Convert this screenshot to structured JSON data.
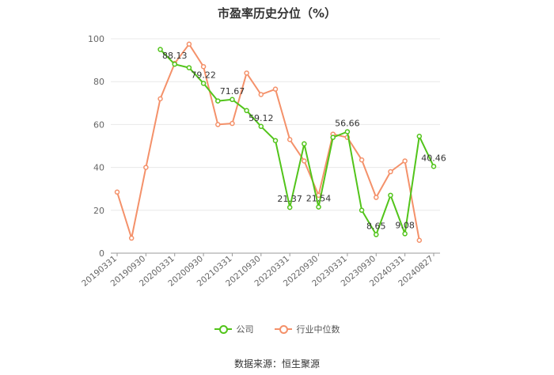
{
  "chart_data": {
    "type": "line",
    "title": "市盈率历史分位（%）",
    "ylim": [
      0,
      100
    ],
    "yticks": [
      0,
      20,
      40,
      60,
      80,
      100
    ],
    "grid": true,
    "legend_position": "bottom",
    "x_tick_labels": [
      "20190331",
      "20190930",
      "20200331",
      "20200930",
      "20210331",
      "20210930",
      "20220331",
      "20220930",
      "20230331",
      "20230930",
      "20240331",
      "20240827"
    ],
    "x": [
      "20190331",
      "20190630",
      "20190930",
      "20191231",
      "20200331",
      "20200630",
      "20200930",
      "20201231",
      "20210331",
      "20210630",
      "20210930",
      "20211231",
      "20220331",
      "20220630",
      "20220930",
      "20221231",
      "20230331",
      "20230630",
      "20230930",
      "20231231",
      "20240331",
      "20240630",
      "20240827"
    ],
    "series": [
      {
        "name": "公司",
        "color": "#52c41a",
        "values": [
          null,
          null,
          null,
          95,
          88.13,
          86.5,
          79.22,
          71,
          71.67,
          66.5,
          59.12,
          52.5,
          21.37,
          51,
          21.54,
          54,
          56.66,
          20,
          8.65,
          27,
          9.08,
          54.5,
          40.46
        ]
      },
      {
        "name": "行业中位数",
        "color": "#f4916a",
        "values": [
          28.5,
          7,
          40,
          72,
          88.5,
          97.5,
          87,
          60,
          60.5,
          84,
          74,
          76.5,
          53,
          43,
          27,
          55.5,
          54,
          43.5,
          26,
          38,
          43,
          6,
          null
        ]
      }
    ],
    "data_labels": [
      {
        "series": 0,
        "index": 4,
        "text": "88.13"
      },
      {
        "series": 0,
        "index": 6,
        "text": "79.22"
      },
      {
        "series": 0,
        "index": 8,
        "text": "71.67"
      },
      {
        "series": 0,
        "index": 10,
        "text": "59.12"
      },
      {
        "series": 0,
        "index": 12,
        "text": "21.37"
      },
      {
        "series": 0,
        "index": 14,
        "text": "21.54"
      },
      {
        "series": 0,
        "index": 16,
        "text": "56.66"
      },
      {
        "series": 0,
        "index": 18,
        "text": "8.65"
      },
      {
        "series": 0,
        "index": 20,
        "text": "9.08"
      },
      {
        "series": 0,
        "index": 22,
        "text": "40.46"
      }
    ]
  },
  "legend": {
    "company": "公司",
    "industry_median": "行业中位数"
  },
  "source": "数据来源：恒生聚源"
}
